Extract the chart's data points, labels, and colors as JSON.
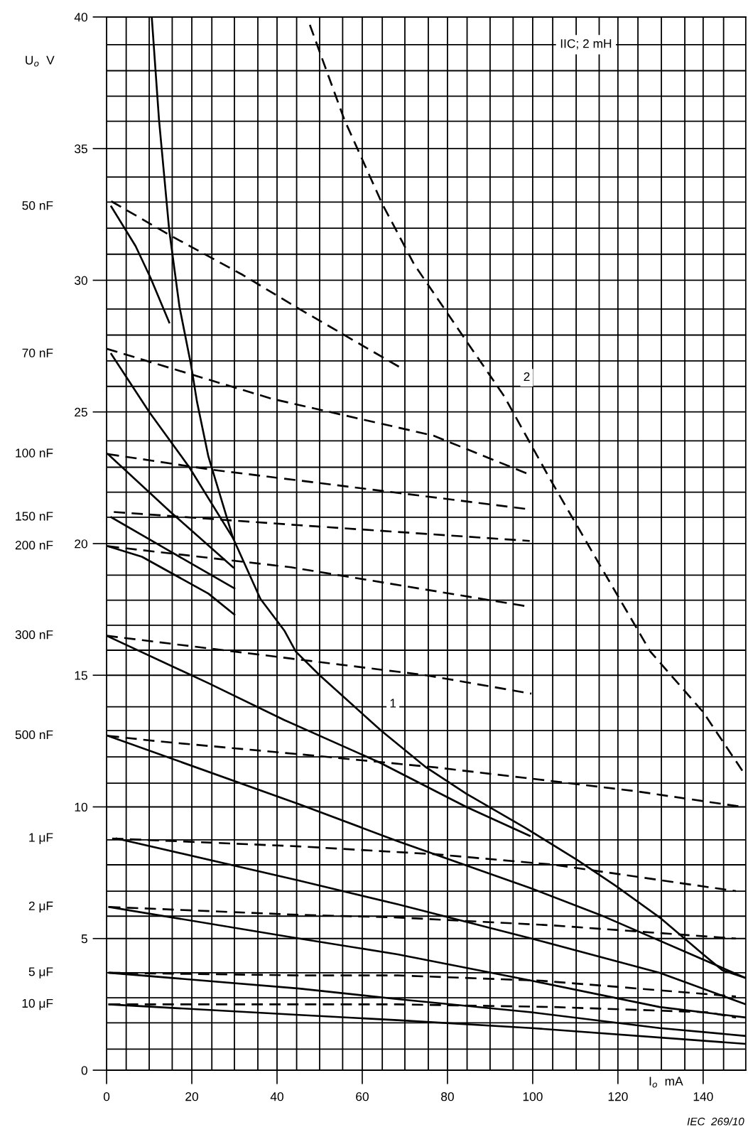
{
  "chart_data": {
    "type": "line",
    "title": "IIC; 2 mH",
    "xlabel": "I$_{o}$  mA",
    "ylabel": "U$_{o}$  V",
    "xlim": [
      0,
      150
    ],
    "ylim": [
      0,
      40
    ],
    "xticks": [
      0,
      {
        "value": 4.6,
        "label": null
      },
      {
        "value": 10,
        "label": null
      },
      {
        "value": 15.4,
        "label": null
      },
      20,
      {
        "value": 24.7,
        "label": null
      },
      {
        "value": 30,
        "label": null
      },
      {
        "value": 35.5,
        "label": null
      },
      40,
      {
        "value": 44.6,
        "label": null
      },
      {
        "value": 50,
        "label": null
      },
      {
        "value": 55.4,
        "label": null
      },
      60,
      {
        "value": 64.7,
        "label": null
      },
      {
        "value": 70,
        "label": null
      },
      {
        "value": 75.5,
        "label": null
      },
      80,
      {
        "value": 84.6,
        "label": null
      },
      {
        "value": 90,
        "label": null
      },
      {
        "value": 95.4,
        "label": null
      },
      100,
      {
        "value": 104.7,
        "label": null
      },
      {
        "value": 110.2,
        "label": null
      },
      {
        "value": 115.6,
        "label": null
      },
      120,
      {
        "value": 124.7,
        "label": null
      },
      {
        "value": 130.2,
        "label": null
      },
      {
        "value": 135.7,
        "label": null
      },
      140,
      {
        "value": 144.8,
        "label": null
      }
    ],
    "yticks": [
      0,
      {
        "value": 0.8,
        "label": null
      },
      {
        "value": 1.8,
        "label": null
      },
      {
        "value": 2.75,
        "label": null
      },
      {
        "value": 3.7,
        "label": null
      },
      5,
      {
        "value": 5.85,
        "label": null
      },
      {
        "value": 6.8,
        "label": null
      },
      {
        "value": 7.8,
        "label": null
      },
      {
        "value": 8.75,
        "label": null
      },
      10,
      {
        "value": 10.9,
        "label": null
      },
      {
        "value": 11.9,
        "label": null
      },
      {
        "value": 12.9,
        "label": null
      },
      {
        "value": 13.8,
        "label": null
      },
      15,
      {
        "value": 15.95,
        "label": null
      },
      {
        "value": 16.9,
        "label": null
      },
      {
        "value": 17.85,
        "label": null
      },
      {
        "value": 18.8,
        "label": null
      },
      20,
      {
        "value": 21,
        "label": null
      },
      {
        "value": 21.95,
        "label": null
      },
      {
        "value": 22.9,
        "label": null
      },
      {
        "value": 23.9,
        "label": null
      },
      25,
      {
        "value": 25.97,
        "label": null
      },
      {
        "value": 26.94,
        "label": null
      },
      {
        "value": 27.92,
        "label": null
      },
      {
        "value": 28.91,
        "label": null
      },
      30,
      {
        "value": 30.99,
        "label": null
      },
      {
        "value": 31.98,
        "label": null
      },
      {
        "value": 32.97,
        "label": null
      },
      {
        "value": 33.92,
        "label": null
      },
      35,
      {
        "value": 36.04,
        "label": null
      },
      {
        "value": 36.99,
        "label": null
      },
      {
        "value": 37.96,
        "label": null
      },
      {
        "value": 38.95,
        "label": null
      },
      40
    ],
    "grid": true,
    "series": [
      {
        "color": "#000000",
        "line_style": "solid",
        "x": [
          10.6,
          12.3,
          14.7,
          17.1,
          19.8,
          21.2,
          23.9,
          29.7,
          36.1,
          41.7,
          44.4,
          50,
          64.4,
          75,
          84.4,
          98.3,
          110.3,
          119.5,
          129.8,
          140,
          144.5,
          150
        ],
        "values": [
          40,
          36.1,
          31.9,
          29.0,
          26.8,
          25.4,
          23.3,
          20.2,
          17.9,
          16.7,
          15.9,
          15.0,
          12.9,
          11.5,
          10.5,
          9.2,
          8.0,
          7.0,
          5.8,
          4.4,
          3.8,
          3.5
        ]
      },
      {
        "color": "#000000",
        "line_style": "dashed",
        "x": [
          47.7,
          55.8,
          64.7,
          72.2,
          84.4,
          93.3,
          103.9,
          115.7,
          127.6,
          140,
          149.5
        ],
        "values": [
          39.7,
          36.1,
          32.9,
          30.6,
          27.7,
          25.6,
          22.5,
          19.2,
          15.9,
          13.6,
          11.3
        ]
      },
      {
        "color": "#000000",
        "line_style": "solid",
        "x": [
          1.1,
          6.8,
          10.3,
          14.7
        ],
        "values": [
          32.8,
          31.3,
          30.1,
          28.4
        ]
      },
      {
        "color": "#000000",
        "line_style": "dashed",
        "x": [
          1.1,
          15,
          32,
          44.3,
          68.8
        ],
        "values": [
          33.0,
          31.7,
          30.2,
          29.0,
          26.7
        ]
      },
      {
        "color": "#000000",
        "line_style": "solid",
        "x": [
          1.1,
          10,
          19.4,
          29.7
        ],
        "values": [
          27.2,
          25.0,
          22.9,
          20.2
        ]
      },
      {
        "color": "#000000",
        "line_style": "dashed",
        "x": [
          0,
          38.8,
          76.7,
          99.6
        ],
        "values": [
          27.4,
          25.5,
          24.1,
          22.6
        ]
      },
      {
        "color": "#000000",
        "line_style": "solid",
        "x": [
          0.3,
          15,
          29.7
        ],
        "values": [
          23.4,
          21.2,
          19.1
        ]
      },
      {
        "color": "#000000",
        "line_style": "dashed",
        "x": [
          0.3,
          25,
          45,
          99.3
        ],
        "values": [
          23.4,
          22.8,
          22.4,
          21.3
        ]
      },
      {
        "color": "#000000",
        "line_style": "solid",
        "x": [
          1.1,
          13.9,
          30
        ],
        "values": [
          21.0,
          19.8,
          18.3
        ]
      },
      {
        "color": "#000000",
        "line_style": "dashed",
        "x": [
          1.7,
          45,
          99.3
        ],
        "values": [
          21.2,
          20.7,
          20.1
        ]
      },
      {
        "color": "#000000",
        "line_style": "solid",
        "x": [
          0.3,
          8.3,
          23.9,
          30
        ],
        "values": [
          19.9,
          19.5,
          18.1,
          17.3
        ]
      },
      {
        "color": "#000000",
        "line_style": "dashed",
        "x": [
          0.3,
          43.3,
          99.3
        ],
        "values": [
          19.9,
          19.1,
          17.6
        ]
      },
      {
        "color": "#000000",
        "line_style": "solid",
        "x": [
          0,
          23.9,
          41.7,
          63.9,
          84.4,
          99.3
        ],
        "values": [
          16.5,
          14.7,
          13.3,
          11.7,
          10.0,
          8.9
        ]
      },
      {
        "color": "#000000",
        "line_style": "dashed",
        "x": [
          0,
          45,
          75,
          99.7
        ],
        "values": [
          16.5,
          15.6,
          15.0,
          14.3
        ]
      },
      {
        "color": "#000000",
        "line_style": "solid",
        "x": [
          0.3,
          45.2,
          68.3,
          99.7,
          115.8,
          150
        ],
        "values": [
          12.7,
          10.1,
          8.7,
          6.9,
          5.9,
          3.5
        ]
      },
      {
        "color": "#000000",
        "line_style": "dashed",
        "x": [
          0.3,
          11.5,
          45.2,
          77.2,
          98.3,
          124,
          149.2
        ],
        "values": [
          12.7,
          12.5,
          12.0,
          11.5,
          11.1,
          10.6,
          10.0
        ]
      },
      {
        "color": "#000000",
        "line_style": "solid",
        "x": [
          2.4,
          45.2,
          68.3,
          99.7,
          129.8,
          150
        ],
        "values": [
          8.8,
          7.2,
          6.3,
          5.0,
          3.7,
          2.5
        ]
      },
      {
        "color": "#000000",
        "line_style": "dashed",
        "x": [
          1.3,
          45.2,
          77.2,
          105.2,
          147.7
        ],
        "values": [
          8.8,
          8.5,
          8.2,
          7.8,
          6.8
        ]
      },
      {
        "color": "#000000",
        "line_style": "solid",
        "x": [
          0.6,
          45.2,
          68.3,
          99.7,
          129.8,
          150
        ],
        "values": [
          6.2,
          5.0,
          4.4,
          3.4,
          2.4,
          2.0
        ]
      },
      {
        "color": "#000000",
        "line_style": "dashed",
        "x": [
          0.6,
          45.2,
          68.3,
          104.7,
          147.7
        ],
        "values": [
          6.2,
          5.9,
          5.8,
          5.5,
          5.0
        ]
      },
      {
        "color": "#000000",
        "line_style": "solid",
        "x": [
          0.6,
          45.2,
          68.3,
          99.7,
          129.8,
          150
        ],
        "values": [
          3.7,
          3.1,
          2.7,
          2.2,
          1.6,
          1.3
        ]
      },
      {
        "color": "#000000",
        "line_style": "dashed",
        "x": [
          0.6,
          45.2,
          68.3,
          101.8,
          147.7
        ],
        "values": [
          3.7,
          3.6,
          3.6,
          3.4,
          2.8
        ]
      },
      {
        "color": "#000000",
        "line_style": "solid",
        "x": [
          0.6,
          45.2,
          68.3,
          99.7,
          150
        ],
        "values": [
          2.5,
          2.1,
          1.9,
          1.6,
          1.0
        ]
      },
      {
        "color": "#000000",
        "line_style": "dashed",
        "x": [
          0.6,
          45.2,
          68.3,
          104.7,
          141,
          147.7
        ],
        "values": [
          2.5,
          2.5,
          2.5,
          2.4,
          2.2,
          2.0
        ]
      }
    ],
    "annotations": [
      {
        "text": "1",
        "x": 67.2,
        "y": 13.9
      },
      {
        "text": "2",
        "x": 98.6,
        "y": 26.3
      },
      "50 nF",
      "70 nF",
      "100 nF",
      "150 nF",
      "200 nF",
      "300 nF",
      "500 nF",
      "1 μF",
      "2 μF",
      "5 μF",
      "10 μF",
      "IEC  269/10"
    ]
  }
}
